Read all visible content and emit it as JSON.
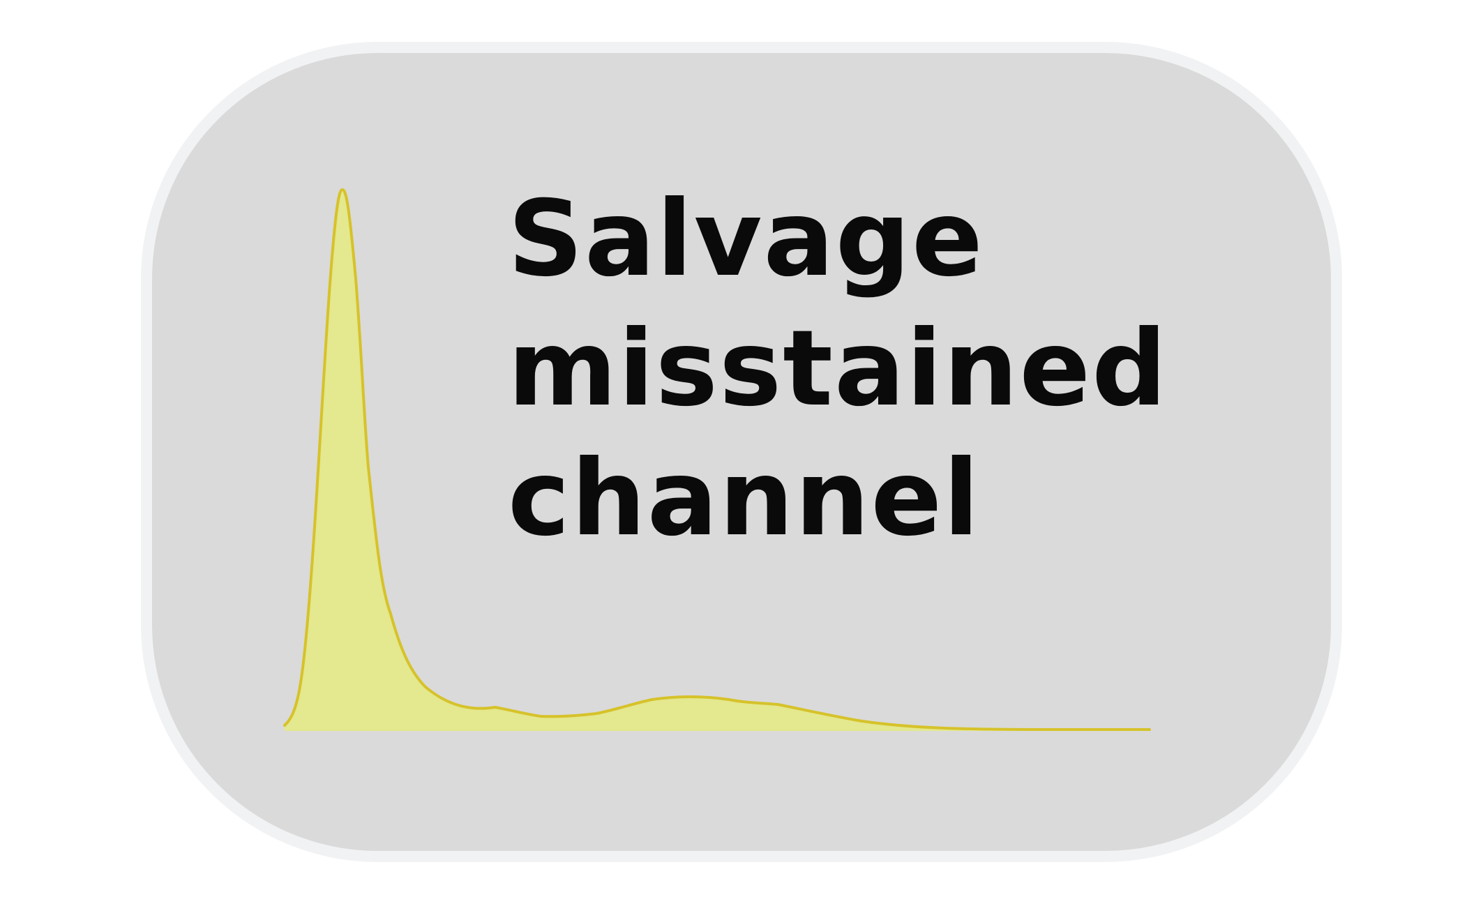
{
  "title_lines": [
    "Salvage",
    "misstained",
    "channel"
  ],
  "colors": {
    "card_fill": "#dadada",
    "card_border": "#f1f2f3",
    "curve_fill": "#e4e88e",
    "curve_stroke": "#d6c22a",
    "text": "#0a0a0a"
  },
  "icon": "density-curve-icon"
}
